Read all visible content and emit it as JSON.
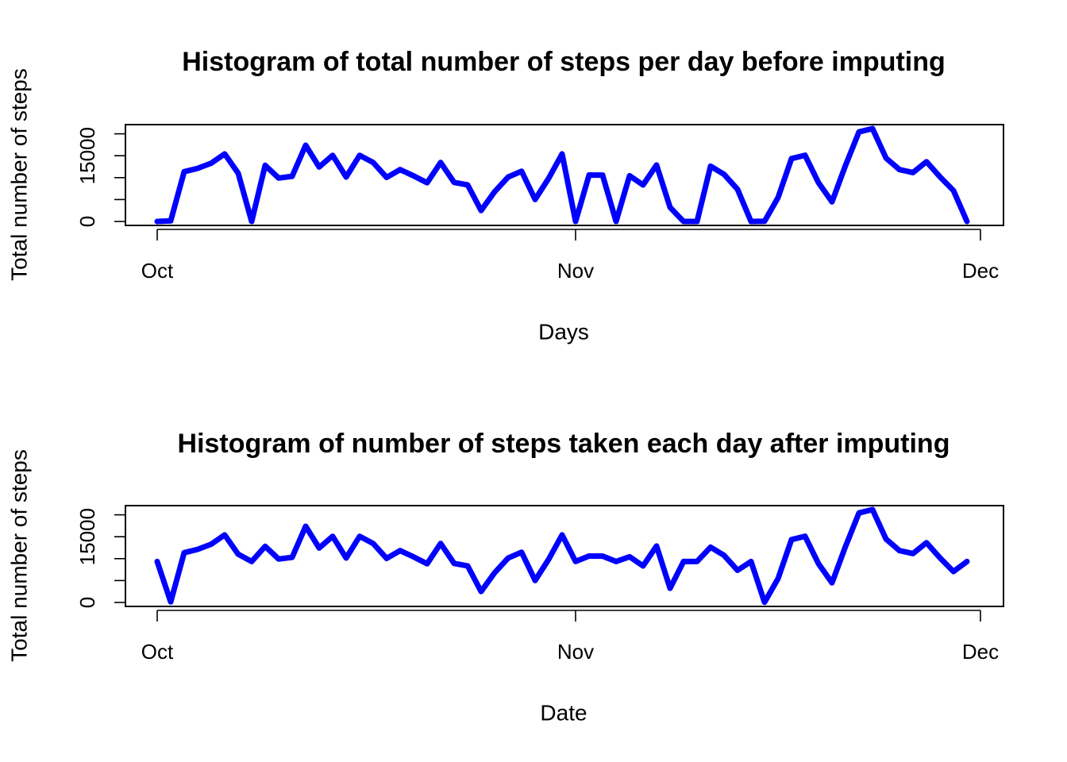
{
  "chart_data": [
    {
      "type": "line",
      "title": "Histogram of total number of steps per day before imputing",
      "xlabel": "Days",
      "ylabel": "Total number of steps",
      "x_ticks": [
        {
          "label": "Oct",
          "day": 0
        },
        {
          "label": "Nov",
          "day": 31
        },
        {
          "label": "Dec",
          "day": 61
        }
      ],
      "y_ticks_labeled": [
        0,
        15000
      ],
      "y_tick_step": 5000,
      "ylim": [
        0,
        21194
      ],
      "xlim": [
        0,
        60
      ],
      "color": "#0000ff",
      "x_days": [
        0,
        1,
        2,
        3,
        4,
        5,
        6,
        7,
        8,
        9,
        10,
        11,
        12,
        13,
        14,
        15,
        16,
        17,
        18,
        19,
        20,
        21,
        22,
        23,
        24,
        25,
        26,
        27,
        28,
        29,
        30,
        31,
        32,
        33,
        34,
        35,
        36,
        37,
        38,
        39,
        40,
        41,
        42,
        43,
        44,
        45,
        46,
        47,
        48,
        49,
        50,
        51,
        52,
        53,
        54,
        55,
        56,
        57,
        58,
        59,
        60
      ],
      "values": [
        0,
        126,
        11352,
        12116,
        13294,
        15420,
        11015,
        0,
        12811,
        9900,
        10304,
        17382,
        12426,
        15098,
        10139,
        15084,
        13452,
        10056,
        11829,
        10395,
        8821,
        13460,
        8918,
        8355,
        2492,
        6778,
        10119,
        11458,
        5018,
        9819,
        15414,
        0,
        10600,
        10571,
        0,
        10439,
        8334,
        12883,
        3219,
        0,
        0,
        12608,
        10765,
        7336,
        0,
        41,
        5441,
        14339,
        15110,
        8841,
        4472,
        12787,
        20427,
        21194,
        14478,
        11834,
        11162,
        13646,
        10183,
        7047,
        0
      ]
    },
    {
      "type": "line",
      "title": "Histogram of number of steps taken each day after imputing",
      "xlabel": "Date",
      "ylabel": "Total number of steps",
      "x_ticks": [
        {
          "label": "Oct",
          "day": 0
        },
        {
          "label": "Nov",
          "day": 31
        },
        {
          "label": "Dec",
          "day": 61
        }
      ],
      "y_ticks_labeled": [
        0,
        15000
      ],
      "y_tick_step": 5000,
      "ylim": [
        0,
        21194
      ],
      "xlim": [
        0,
        60
      ],
      "color": "#0000ff",
      "x_days": [
        0,
        1,
        2,
        3,
        4,
        5,
        6,
        7,
        8,
        9,
        10,
        11,
        12,
        13,
        14,
        15,
        16,
        17,
        18,
        19,
        20,
        21,
        22,
        23,
        24,
        25,
        26,
        27,
        28,
        29,
        30,
        31,
        32,
        33,
        34,
        35,
        36,
        37,
        38,
        39,
        40,
        41,
        42,
        43,
        44,
        45,
        46,
        47,
        48,
        49,
        50,
        51,
        52,
        53,
        54,
        55,
        56,
        57,
        58,
        59,
        60
      ],
      "values": [
        9354,
        126,
        11352,
        12116,
        13294,
        15420,
        11015,
        9354,
        12811,
        9900,
        10304,
        17382,
        12426,
        15098,
        10139,
        15084,
        13452,
        10056,
        11829,
        10395,
        8821,
        13460,
        8918,
        8355,
        2492,
        6778,
        10119,
        11458,
        5018,
        9819,
        15414,
        9354,
        10600,
        10571,
        9354,
        10439,
        8334,
        12883,
        3219,
        9354,
        9354,
        12608,
        10765,
        7336,
        9354,
        41,
        5441,
        14339,
        15110,
        8841,
        4472,
        12787,
        20427,
        21194,
        14478,
        11834,
        11162,
        13646,
        10183,
        7047,
        9354
      ]
    }
  ]
}
